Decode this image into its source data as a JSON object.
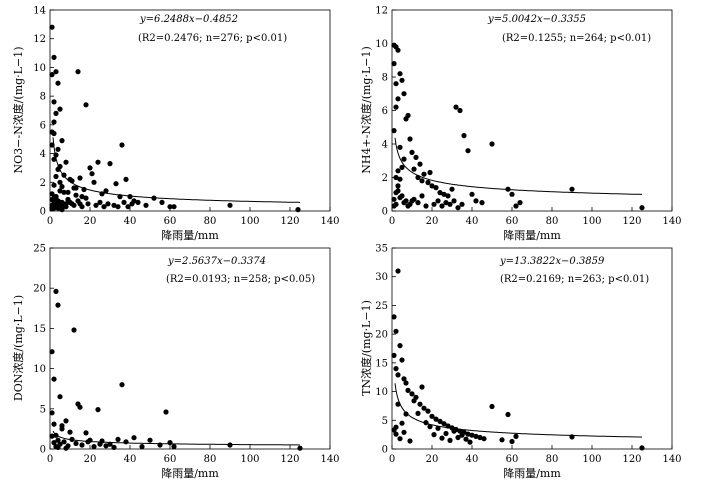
{
  "chart_data": [
    {
      "type": "scatter",
      "ylabel": "NO3−-N浓度/(mg·L−1)",
      "xlabel": "降雨量/mm",
      "xlim": [
        0,
        140
      ],
      "ylim": [
        0,
        14
      ],
      "xticks": [
        0,
        20,
        40,
        60,
        80,
        100,
        120,
        140
      ],
      "yticks": [
        0,
        2,
        4,
        6,
        8,
        10,
        12,
        14
      ],
      "fit": {
        "equation": "y=6.2488x−0.4852",
        "a": 6.2488,
        "b": -0.4852,
        "stats": "(R2=0.2476; n=276; p<0.01)"
      },
      "x": [
        1,
        2,
        1,
        3,
        4,
        2,
        5,
        2,
        3,
        1,
        2,
        4,
        6,
        3,
        1,
        2,
        5,
        8,
        7,
        4,
        3,
        2,
        10,
        12,
        11,
        9,
        15,
        17,
        13,
        20,
        22,
        14,
        18,
        6,
        16,
        24,
        26,
        21,
        30,
        28,
        33,
        35,
        38,
        40,
        42,
        44,
        36,
        48,
        52,
        56,
        60,
        62,
        90,
        124,
        1,
        3,
        5,
        2,
        4,
        6,
        8,
        3,
        1,
        2,
        7,
        9,
        5,
        11,
        4,
        6,
        2,
        3,
        1,
        8,
        10,
        12,
        14,
        16,
        19,
        23,
        25,
        27,
        29,
        32,
        34,
        37,
        39,
        41,
        5,
        7,
        3,
        2,
        1,
        4,
        6,
        2,
        9,
        13,
        18,
        15
      ],
      "y": [
        12.8,
        10.7,
        9.5,
        9.7,
        8.9,
        7.6,
        7.1,
        6.2,
        6.8,
        5.5,
        5.4,
        4.3,
        4.9,
        3.9,
        4.6,
        3.6,
        3.1,
        3.4,
        2.5,
        2.9,
        2.4,
        1.8,
        2.2,
        1.6,
        2.1,
        1.3,
        2.3,
        1.5,
        1.1,
        3.0,
        2.0,
        9.7,
        7.4,
        1.7,
        1.0,
        3.4,
        1.2,
        2.6,
        3.3,
        1.4,
        1.9,
        1.0,
        2.2,
        1.0,
        0.7,
        0.6,
        4.6,
        0.4,
        0.9,
        0.6,
        0.3,
        0.3,
        0.4,
        0.1,
        1.2,
        0.8,
        0.6,
        0.4,
        0.7,
        0.3,
        0.5,
        1.0,
        0.2,
        0.9,
        0.4,
        0.8,
        1.4,
        0.5,
        0.3,
        0.6,
        0.2,
        0.5,
        0.8,
        0.3,
        0.6,
        0.4,
        0.7,
        0.3,
        0.5,
        0.4,
        0.6,
        0.3,
        0.5,
        0.4,
        0.3,
        0.6,
        0.3,
        0.5,
        2.0,
        1.3,
        1.0,
        0.6,
        0.4,
        0.2,
        0.1,
        0.3,
        0.8,
        1.6,
        0.9,
        0.5
      ]
    },
    {
      "type": "scatter",
      "ylabel": "NH4+-N浓度/(mg·L−1)",
      "xlabel": "降雨量/mm",
      "xlim": [
        0,
        140
      ],
      "ylim": [
        0,
        12
      ],
      "xticks": [
        0,
        20,
        40,
        60,
        80,
        100,
        120,
        140
      ],
      "yticks": [
        0,
        2,
        4,
        6,
        8,
        10,
        12
      ],
      "fit": {
        "equation": "y=5.0042x−0.3355",
        "a": 5.0042,
        "b": -0.3355,
        "stats": "(R2=0.1255; n=264; p<0.01)"
      },
      "x": [
        1,
        2,
        3,
        1,
        4,
        2,
        5,
        3,
        6,
        2,
        8,
        7,
        1,
        9,
        4,
        10,
        12,
        14,
        11,
        16,
        13,
        18,
        15,
        20,
        22,
        24,
        19,
        26,
        28,
        30,
        32,
        34,
        36,
        38,
        40,
        42,
        45,
        50,
        58,
        60,
        62,
        64,
        90,
        125,
        3,
        5,
        7,
        2,
        1,
        4,
        6,
        8,
        10,
        3,
        2,
        9,
        11,
        13,
        15,
        17,
        21,
        23,
        25,
        27,
        29,
        31,
        33,
        35,
        5,
        4,
        2,
        1,
        6,
        3
      ],
      "y": [
        9.9,
        9.8,
        9.6,
        8.8,
        8.2,
        7.6,
        7.8,
        6.7,
        7.0,
        6.2,
        5.7,
        5.5,
        4.8,
        4.3,
        3.8,
        3.5,
        3.2,
        2.8,
        2.5,
        2.2,
        2.0,
        1.7,
        1.8,
        1.5,
        1.4,
        1.1,
        2.3,
        1.0,
        0.9,
        1.3,
        6.2,
        6.0,
        4.5,
        3.6,
        1.0,
        0.6,
        0.5,
        4.0,
        1.3,
        1.0,
        0.3,
        0.5,
        1.3,
        0.2,
        1.2,
        0.9,
        0.6,
        0.4,
        0.3,
        0.8,
        0.5,
        0.3,
        0.6,
        1.5,
        2.0,
        0.4,
        0.7,
        0.5,
        0.9,
        0.3,
        0.4,
        0.6,
        0.3,
        0.5,
        0.4,
        0.6,
        0.2,
        0.4,
        2.6,
        1.9,
        1.1,
        0.7,
        3.1,
        2.4
      ]
    },
    {
      "type": "scatter",
      "ylabel": "DON浓度/(mg·L−1)",
      "xlabel": "降雨量/mm",
      "xlim": [
        0,
        140
      ],
      "ylim": [
        0,
        25
      ],
      "xticks": [
        0,
        20,
        40,
        60,
        80,
        100,
        120,
        140
      ],
      "yticks": [
        0,
        5,
        10,
        15,
        20,
        25
      ],
      "fit": {
        "equation": "y=2.5637x−0.3374",
        "a": 2.5637,
        "b": -0.3374,
        "stats": "(R2=0.0193; n=258; p<0.05)"
      },
      "x": [
        3,
        1,
        4,
        12,
        2,
        5,
        15,
        24,
        36,
        58,
        8,
        10,
        14,
        18,
        20,
        26,
        30,
        34,
        38,
        42,
        46,
        50,
        55,
        60,
        62,
        90,
        125,
        1,
        2,
        3,
        4,
        5,
        6,
        7,
        9,
        11,
        13,
        16,
        19,
        22,
        25,
        28,
        32,
        2,
        1,
        3,
        6,
        4,
        8
      ],
      "y": [
        19.6,
        12.1,
        17.9,
        14.8,
        8.7,
        6.5,
        5.2,
        4.9,
        8.0,
        4.6,
        3.5,
        2.1,
        5.6,
        2.0,
        1.1,
        1.0,
        0.6,
        1.2,
        0.9,
        1.4,
        0.3,
        1.1,
        0.5,
        0.8,
        0.3,
        0.5,
        0.1,
        1.6,
        0.8,
        0.3,
        1.1,
        0.6,
        2.5,
        0.9,
        0.4,
        1.2,
        0.7,
        0.5,
        0.9,
        0.3,
        0.6,
        0.4,
        0.2,
        3.1,
        4.5,
        1.7,
        2.9,
        0.2,
        0.1
      ]
    },
    {
      "type": "scatter",
      "ylabel": "TN浓度/(mg·L−1)",
      "xlabel": "降雨量/mm",
      "xlim": [
        0,
        140
      ],
      "ylim": [
        0,
        35
      ],
      "xticks": [
        0,
        20,
        40,
        60,
        80,
        100,
        120,
        140
      ],
      "yticks": [
        0,
        5,
        10,
        15,
        20,
        25,
        30,
        35
      ],
      "fit": {
        "equation": "y=13.3822x−0.3859",
        "a": 13.3822,
        "b": -0.3859,
        "stats": "(R2=0.2169; n=263; p<0.01)"
      },
      "x": [
        3,
        1,
        2,
        4,
        1,
        5,
        2,
        3,
        6,
        7,
        8,
        10,
        12,
        11,
        14,
        16,
        18,
        13,
        20,
        22,
        24,
        26,
        28,
        30,
        32,
        34,
        36,
        38,
        40,
        42,
        44,
        46,
        50,
        55,
        58,
        60,
        62,
        90,
        125,
        1,
        2,
        4,
        6,
        9,
        15,
        17,
        19,
        21,
        23,
        25,
        27,
        29,
        31,
        33,
        35,
        37,
        39,
        5,
        7,
        3,
        2
      ],
      "y": [
        31,
        23,
        20.5,
        18,
        16.3,
        15.5,
        14,
        12.9,
        12.2,
        11.5,
        10.2,
        9.6,
        9.0,
        8.4,
        7.8,
        7.1,
        6.6,
        6.2,
        5.7,
        5.2,
        4.8,
        4.4,
        4.0,
        3.7,
        3.4,
        3.1,
        2.9,
        2.6,
        2.4,
        2.2,
        2.0,
        1.8,
        7.4,
        1.6,
        6.0,
        1.3,
        2.2,
        2.1,
        0.2,
        3.3,
        2.6,
        1.8,
        2.9,
        1.4,
        10.8,
        4.6,
        3.9,
        2.5,
        3.6,
        1.9,
        2.7,
        1.5,
        3.1,
        2.0,
        2.4,
        1.7,
        1.2,
        4.5,
        6.1,
        7.8,
        3.8
      ]
    }
  ]
}
